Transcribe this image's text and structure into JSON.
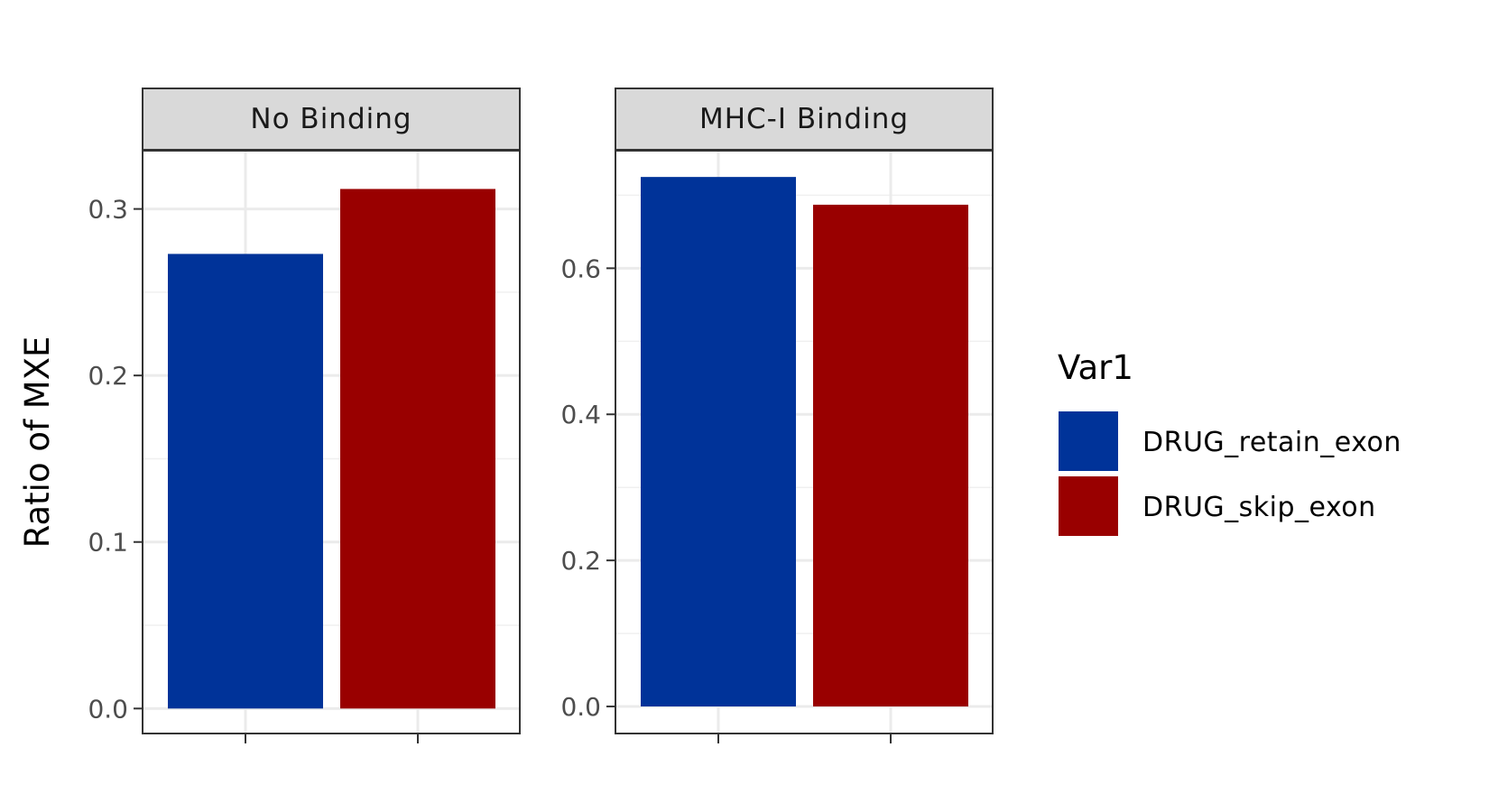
{
  "chart_data": {
    "type": "bar",
    "title": "",
    "ylabel": "Ratio of MXE",
    "xlabel": "",
    "grid": true,
    "legend": {
      "title": "Var1",
      "placement": "right",
      "entries": [
        {
          "label": "DRUG_retain_exon",
          "color": "#003399"
        },
        {
          "label": "DRUG_skip_exon",
          "color": "#990000"
        }
      ]
    },
    "facets": [
      {
        "label": "No Binding",
        "ylim": [
          -0.015,
          0.335
        ],
        "yticks": [
          0.0,
          0.1,
          0.2,
          0.3
        ],
        "ytick_labels": [
          "0.0",
          "0.1",
          "0.2",
          "0.3"
        ],
        "series": [
          {
            "name": "DRUG_retain_exon",
            "value": 0.273
          },
          {
            "name": "DRUG_skip_exon",
            "value": 0.312
          }
        ]
      },
      {
        "label": "MHC-I Binding",
        "ylim": [
          -0.037,
          0.761
        ],
        "yticks": [
          0.0,
          0.2,
          0.4,
          0.6
        ],
        "ytick_labels": [
          "0.0",
          "0.2",
          "0.4",
          "0.6"
        ],
        "series": [
          {
            "name": "DRUG_retain_exon",
            "value": 0.725
          },
          {
            "name": "DRUG_skip_exon",
            "value": 0.687
          }
        ]
      }
    ]
  }
}
